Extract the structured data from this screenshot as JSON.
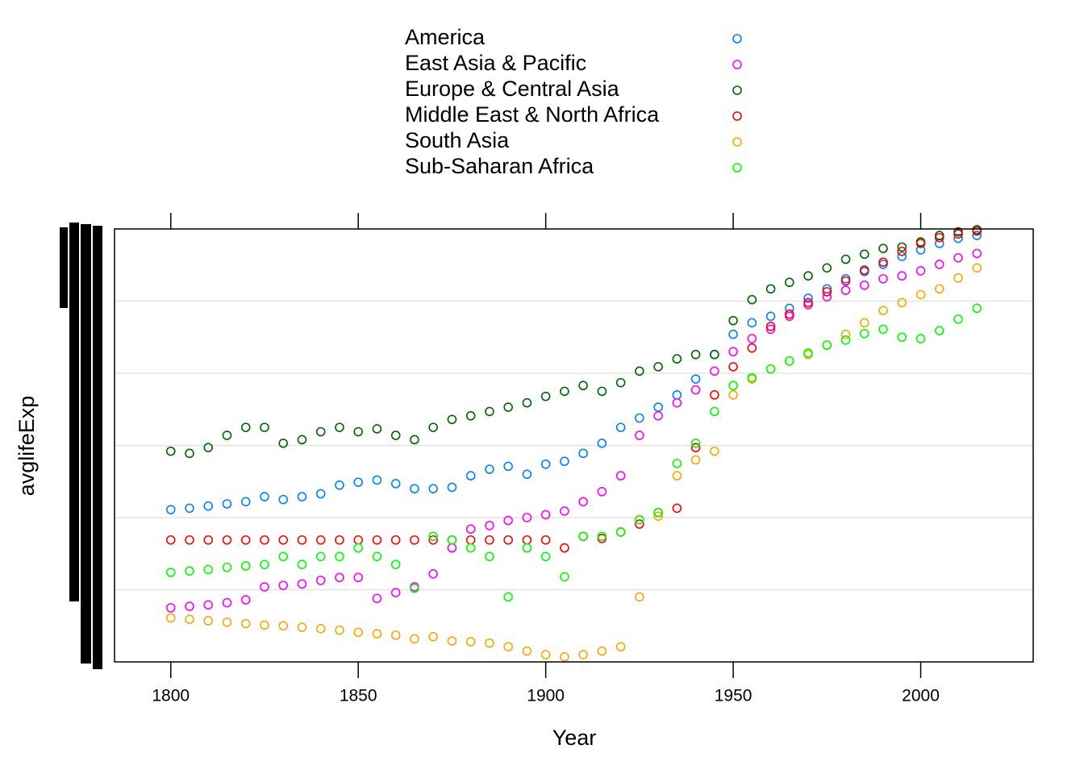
{
  "chart_data": {
    "type": "scatter",
    "x_label": "Year",
    "y_label": "avglifeExp",
    "xlim": [
      1785,
      2030
    ],
    "xticks": [
      1800,
      1850,
      1900,
      1950,
      2000
    ],
    "ylim": [
      20,
      80
    ],
    "ygrid": [
      30,
      40,
      50,
      60,
      70
    ],
    "x": [
      1800,
      1805,
      1810,
      1815,
      1820,
      1825,
      1830,
      1835,
      1840,
      1845,
      1850,
      1855,
      1860,
      1865,
      1870,
      1875,
      1880,
      1885,
      1890,
      1895,
      1900,
      1905,
      1910,
      1915,
      1920,
      1925,
      1930,
      1935,
      1940,
      1945,
      1950,
      1955,
      1960,
      1965,
      1970,
      1975,
      1980,
      1985,
      1990,
      1995,
      2000,
      2005,
      2010,
      2015
    ],
    "series": [
      {
        "name": "America",
        "color": "#0080ff",
        "values": [
          41.1,
          41.3,
          41.6,
          41.9,
          42.2,
          42.9,
          42.5,
          42.9,
          43.3,
          44.5,
          44.9,
          45.2,
          44.7,
          44.0,
          44.0,
          44.2,
          45.8,
          46.7,
          47.1,
          46.0,
          47.4,
          47.8,
          48.9,
          50.3,
          52.5,
          53.8,
          55.3,
          57.0,
          59.2,
          62.6,
          65.4,
          67.0,
          67.9,
          69.0,
          70.4,
          71.7,
          73.1,
          74.1,
          75.1,
          76.2,
          77.1,
          78.0,
          78.7,
          79.1
        ]
      },
      {
        "name": "East Asia & Pacific",
        "color": "#ff00ff",
        "values": [
          27.5,
          27.7,
          27.9,
          28.2,
          28.6,
          30.4,
          30.6,
          30.8,
          31.3,
          31.7,
          31.7,
          28.8,
          29.6,
          30.4,
          32.2,
          35.8,
          38.4,
          38.9,
          39.6,
          40.0,
          40.4,
          40.9,
          42.2,
          43.6,
          45.8,
          51.4,
          54.1,
          55.9,
          57.7,
          60.3,
          63.0,
          64.8,
          66.1,
          67.9,
          69.5,
          70.6,
          71.5,
          72.2,
          73.1,
          73.5,
          74.2,
          75.1,
          76.0,
          76.6
        ]
      },
      {
        "name": "Europe & Central Asia",
        "color": "#006400",
        "values": [
          49.2,
          48.9,
          49.7,
          51.4,
          52.5,
          52.5,
          50.3,
          50.8,
          51.9,
          52.5,
          51.9,
          52.3,
          51.4,
          50.8,
          52.5,
          53.6,
          54.1,
          54.7,
          55.3,
          55.9,
          56.8,
          57.5,
          58.3,
          57.5,
          58.7,
          60.3,
          60.9,
          62.0,
          62.6,
          62.6,
          67.3,
          70.2,
          71.7,
          72.6,
          73.5,
          74.6,
          75.8,
          76.5,
          77.3,
          77.5,
          78.2,
          79.1,
          79.6,
          79.9
        ]
      },
      {
        "name": "Middle East & North Africa",
        "color": "#ff0000",
        "values": [
          36.9,
          36.9,
          36.9,
          36.9,
          36.9,
          36.9,
          36.9,
          36.9,
          36.9,
          36.9,
          36.9,
          36.9,
          36.9,
          36.9,
          36.9,
          36.9,
          36.9,
          36.9,
          36.9,
          36.9,
          36.9,
          35.8,
          37.4,
          37.1,
          38.0,
          39.1,
          40.7,
          41.3,
          49.7,
          57.0,
          60.9,
          63.5,
          66.5,
          68.2,
          69.8,
          71.3,
          72.8,
          74.3,
          75.4,
          76.9,
          78.0,
          78.8,
          79.3,
          79.7
        ]
      },
      {
        "name": "South Asia",
        "color": "#ffa500",
        "values": [
          26.1,
          25.9,
          25.7,
          25.5,
          25.3,
          25.1,
          25.0,
          24.8,
          24.6,
          24.4,
          24.1,
          23.9,
          23.7,
          23.2,
          23.5,
          22.9,
          22.8,
          22.6,
          22.1,
          21.5,
          21.0,
          20.7,
          21.0,
          21.5,
          22.1,
          29.0,
          40.2,
          45.8,
          48.0,
          49.2,
          57.0,
          59.2,
          60.6,
          61.7,
          62.6,
          63.9,
          65.4,
          67.0,
          68.7,
          69.8,
          70.9,
          71.7,
          73.2,
          74.6
        ]
      },
      {
        "name": "Sub-Saharan Africa",
        "color": "#00ff00",
        "values": [
          32.4,
          32.6,
          32.8,
          33.1,
          33.3,
          33.5,
          34.6,
          33.5,
          34.6,
          34.6,
          35.8,
          34.6,
          33.5,
          30.2,
          37.4,
          36.9,
          35.8,
          34.6,
          29.0,
          35.8,
          34.6,
          31.8,
          37.4,
          37.4,
          38.0,
          39.7,
          40.7,
          47.5,
          50.3,
          54.7,
          58.3,
          59.4,
          60.6,
          61.7,
          62.8,
          63.9,
          64.6,
          65.5,
          66.1,
          65.0,
          64.8,
          65.9,
          67.5,
          69.0
        ]
      }
    ]
  }
}
